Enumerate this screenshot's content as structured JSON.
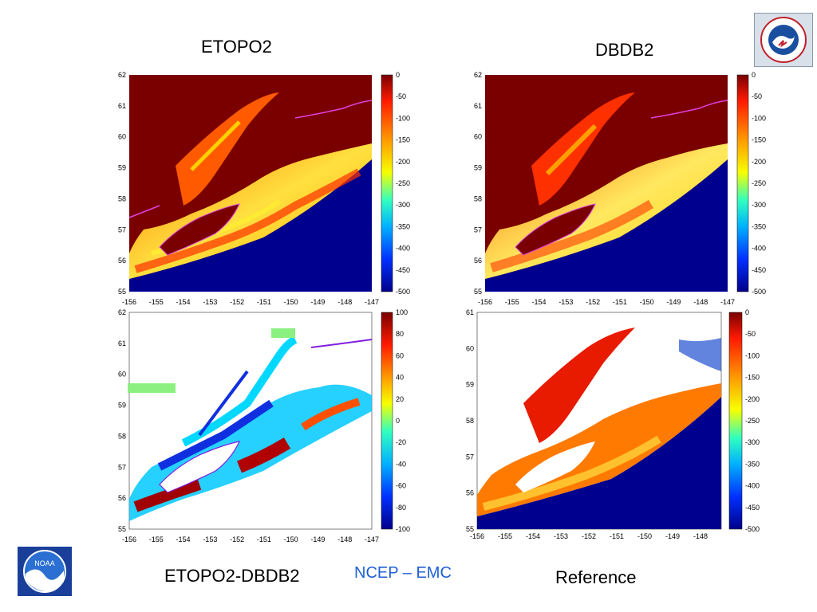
{
  "titles": {
    "top_left": "ETOPO2",
    "top_right": "DBDB2",
    "bottom_left": "ETOPO2-DBDB2",
    "bottom_right": "Reference",
    "credit": "NCEP – EMC"
  },
  "logos": {
    "nws": "National Weather Service",
    "noaa": "NOAA"
  },
  "panels": [
    {
      "id": "etopo2",
      "x_ticks": [
        "-156",
        "-155",
        "-154",
        "-153",
        "-152",
        "-151",
        "-150",
        "-149",
        "-148",
        "-147"
      ],
      "y_ticks": [
        "62",
        "61",
        "60",
        "59",
        "58",
        "57",
        "56",
        "55"
      ],
      "cbar_ticks": [
        "0",
        "-50",
        "-100",
        "-150",
        "-200",
        "-250",
        "-300",
        "-350",
        "-400",
        "-450",
        "-500"
      ]
    },
    {
      "id": "dbdb2",
      "x_ticks": [
        "-156",
        "-155",
        "-154",
        "-153",
        "-152",
        "-151",
        "-150",
        "-149",
        "-148",
        "-147"
      ],
      "y_ticks": [
        "62",
        "61",
        "60",
        "59",
        "58",
        "57",
        "56",
        "55"
      ],
      "cbar_ticks": [
        "0",
        "-50",
        "-100",
        "-150",
        "-200",
        "-250",
        "-300",
        "-350",
        "-400",
        "-450",
        "-500"
      ]
    },
    {
      "id": "difference",
      "x_ticks": [
        "-156",
        "-155",
        "-154",
        "-153",
        "-152",
        "-151",
        "-150",
        "-149",
        "-148",
        "-147"
      ],
      "y_ticks": [
        "62",
        "61",
        "60",
        "59",
        "58",
        "57",
        "56",
        "55"
      ],
      "cbar_ticks": [
        "100",
        "80",
        "60",
        "40",
        "20",
        "0",
        "-20",
        "-40",
        "-60",
        "-80",
        "-100"
      ]
    },
    {
      "id": "reference",
      "x_ticks": [
        "-156",
        "-155",
        "-154",
        "-153",
        "-152",
        "-151",
        "-150",
        "-149",
        "-148"
      ],
      "y_ticks": [
        "61",
        "60",
        "59",
        "58",
        "57",
        "56",
        "55"
      ],
      "cbar_ticks": [
        "0",
        "-50",
        "-100",
        "-150",
        "-200",
        "-250",
        "-300",
        "-350",
        "-400",
        "-450",
        "-500"
      ]
    }
  ]
}
